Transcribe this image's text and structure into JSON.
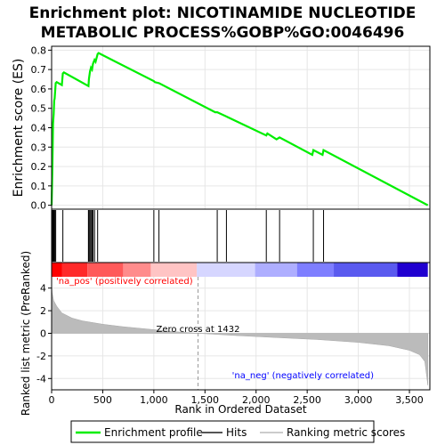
{
  "chart_data": {
    "type": "line",
    "title_line1": "Enrichment plot: NICOTINAMIDE NUCLEOTIDE",
    "title_line2": "METABOLIC PROCESS%GOBP%GO:0046496",
    "es_ylabel": "Enrichment score (ES)",
    "es_yticks": [
      "0.8",
      "0.7",
      "0.6",
      "0.5",
      "0.4",
      "0.3",
      "0.2",
      "0.1",
      "0.0"
    ],
    "es_ylim": [
      -0.02,
      0.82
    ],
    "xlim": [
      0,
      3700
    ],
    "xlabel": "Rank in Ordered Dataset",
    "xticks": [
      "0",
      "500",
      "1,000",
      "1,500",
      "2,000",
      "2,500",
      "3,000",
      "3,500"
    ],
    "metric_ylabel": "Ranked list metric (PreRanked)",
    "metric_yticks": [
      "4",
      "2",
      "0",
      "-2",
      "-4"
    ],
    "metric_ylim": [
      -5,
      5
    ],
    "pos_label": "'na_pos' (positively correlated)",
    "neg_label": "'na_neg' (negatively correlated)",
    "zero_cross_label": "Zero cross at 1432",
    "zero_cross": 1432,
    "n_ranks": 3680,
    "enrichment_profile": [
      [
        0,
        0.0
      ],
      [
        8,
        0.2
      ],
      [
        14,
        0.42
      ],
      [
        20,
        0.47
      ],
      [
        25,
        0.54
      ],
      [
        30,
        0.55
      ],
      [
        40,
        0.63
      ],
      [
        50,
        0.635
      ],
      [
        100,
        0.62
      ],
      [
        110,
        0.68
      ],
      [
        120,
        0.685
      ],
      [
        360,
        0.615
      ],
      [
        365,
        0.65
      ],
      [
        375,
        0.69
      ],
      [
        385,
        0.71
      ],
      [
        395,
        0.7
      ],
      [
        405,
        0.73
      ],
      [
        420,
        0.75
      ],
      [
        430,
        0.74
      ],
      [
        450,
        0.78
      ],
      [
        460,
        0.785
      ],
      [
        1000,
        0.64
      ],
      [
        1010,
        0.635
      ],
      [
        1050,
        0.63
      ],
      [
        1600,
        0.48
      ],
      [
        1620,
        0.48
      ],
      [
        1700,
        0.46
      ],
      [
        2100,
        0.36
      ],
      [
        2110,
        0.37
      ],
      [
        2200,
        0.34
      ],
      [
        2230,
        0.35
      ],
      [
        2550,
        0.26
      ],
      [
        2560,
        0.285
      ],
      [
        2650,
        0.26
      ],
      [
        2660,
        0.285
      ],
      [
        3680,
        0.0
      ]
    ],
    "hits": [
      8,
      14,
      20,
      25,
      30,
      40,
      110,
      360,
      365,
      375,
      385,
      395,
      405,
      420,
      450,
      1000,
      1050,
      1620,
      1710,
      2100,
      2230,
      2560,
      2660
    ],
    "metric_curve": [
      [
        0,
        4.3
      ],
      [
        5,
        3.6
      ],
      [
        20,
        2.9
      ],
      [
        50,
        2.4
      ],
      [
        100,
        1.8
      ],
      [
        200,
        1.35
      ],
      [
        300,
        1.1
      ],
      [
        500,
        0.8
      ],
      [
        700,
        0.58
      ],
      [
        1000,
        0.32
      ],
      [
        1200,
        0.15
      ],
      [
        1432,
        0.0
      ],
      [
        1800,
        -0.2
      ],
      [
        2200,
        -0.38
      ],
      [
        2600,
        -0.55
      ],
      [
        3000,
        -0.8
      ],
      [
        3300,
        -1.1
      ],
      [
        3500,
        -1.5
      ],
      [
        3600,
        -1.9
      ],
      [
        3650,
        -2.5
      ],
      [
        3680,
        -4.6
      ]
    ],
    "legend": [
      {
        "label": "Enrichment profile",
        "color": "#00ee00"
      },
      {
        "label": "Hits",
        "color": "#555555"
      },
      {
        "label": "Ranking metric scores",
        "color": "#cccccc"
      }
    ],
    "colors": {
      "profile": "#00ee00",
      "hit": "#000000",
      "metric_fill": "#bbbbbb",
      "pos_text": "#ff0000",
      "neg_text": "#0000ff"
    },
    "heat_segments": [
      {
        "to": 100,
        "color": "#ff0000"
      },
      {
        "to": 350,
        "color": "#ff2a2a"
      },
      {
        "to": 700,
        "color": "#ff5a5a"
      },
      {
        "to": 970,
        "color": "#ff8c8c"
      },
      {
        "to": 1420,
        "color": "#ffc4c4"
      },
      {
        "to": 1990,
        "color": "#d6d6ff"
      },
      {
        "to": 2400,
        "color": "#aeaeff"
      },
      {
        "to": 2760,
        "color": "#7e7eff"
      },
      {
        "to": 3380,
        "color": "#5a5aef"
      },
      {
        "to": 3680,
        "color": "#2000d0"
      }
    ]
  }
}
